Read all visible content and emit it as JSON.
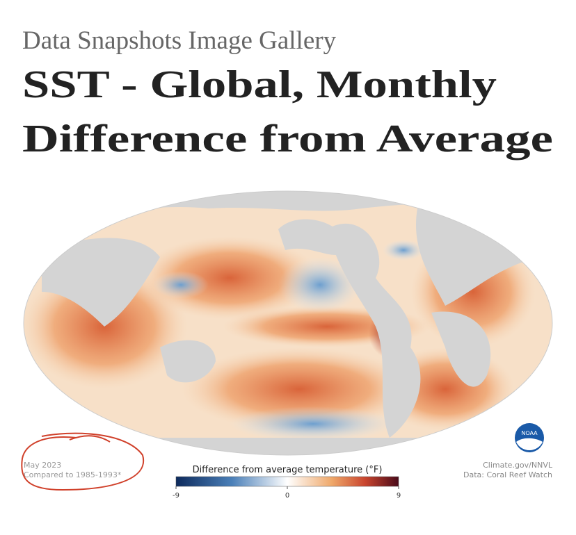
{
  "header": {
    "subtitle": "Data Snapshots Image Gallery",
    "title_lines": [
      "SST - Global, Monthly",
      "Difference from Average"
    ]
  },
  "map": {
    "date": "May 2023",
    "baseline": "Compared to 1985-1993*",
    "credit": "Climate.gov/NNVL",
    "source": "Data: Coral Reef Watch",
    "logo": "NOAA",
    "colorbar": {
      "title": "Difference from average temperature (°F)",
      "range": [
        -9,
        9
      ],
      "ticks": [
        -9,
        0,
        9
      ]
    }
  }
}
